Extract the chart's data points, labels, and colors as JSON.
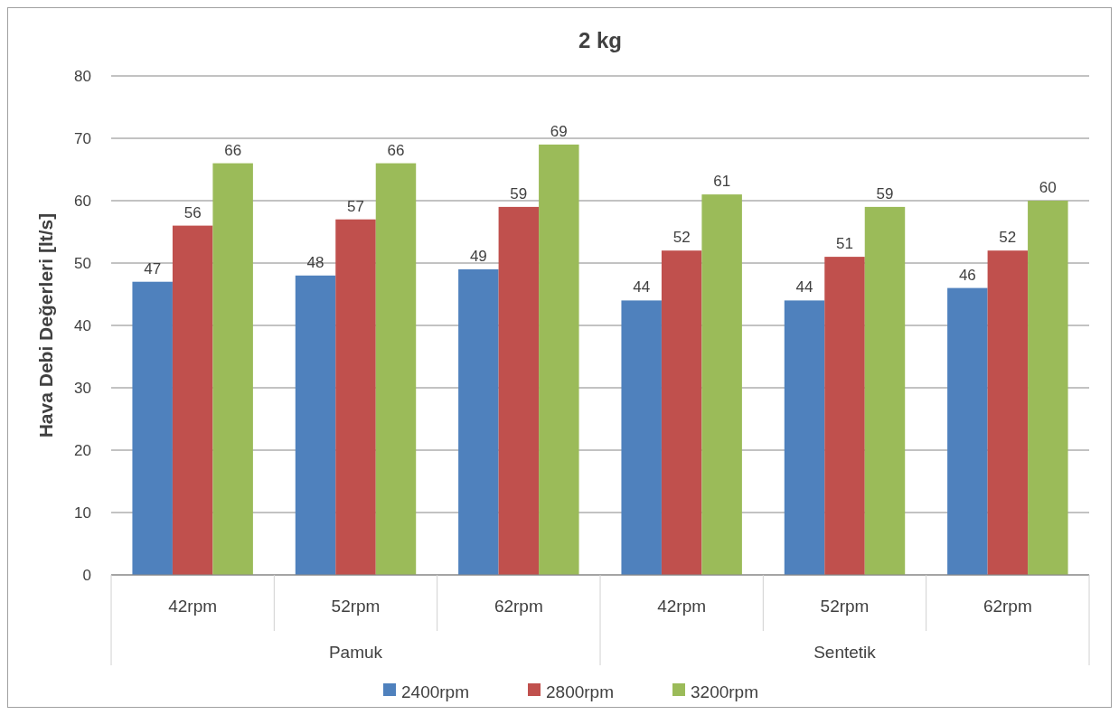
{
  "chart_data": {
    "type": "bar",
    "title": "2 kg",
    "ylabel": "Hava Debi Değerleri [lt/s]",
    "categories": [
      "42rpm",
      "52rpm",
      "62rpm",
      "42rpm",
      "52rpm",
      "62rpm"
    ],
    "annotations": [
      "Pamuk",
      "Sentetik"
    ],
    "series": [
      {
        "name": "2400rpm",
        "color": "#4f81bd",
        "values": [
          47,
          48,
          49,
          44,
          44,
          46
        ]
      },
      {
        "name": "2800rpm",
        "color": "#c0504d",
        "values": [
          56,
          57,
          59,
          52,
          51,
          52
        ]
      },
      {
        "name": "3200rpm",
        "color": "#9bbb59",
        "values": [
          66,
          66,
          69,
          61,
          59,
          60
        ]
      }
    ],
    "ylim": [
      0,
      80
    ],
    "yticks": [
      0,
      10,
      20,
      30,
      40,
      50,
      60,
      70,
      80
    ],
    "grid": "y",
    "legend": "bottom",
    "data_labels": true
  }
}
